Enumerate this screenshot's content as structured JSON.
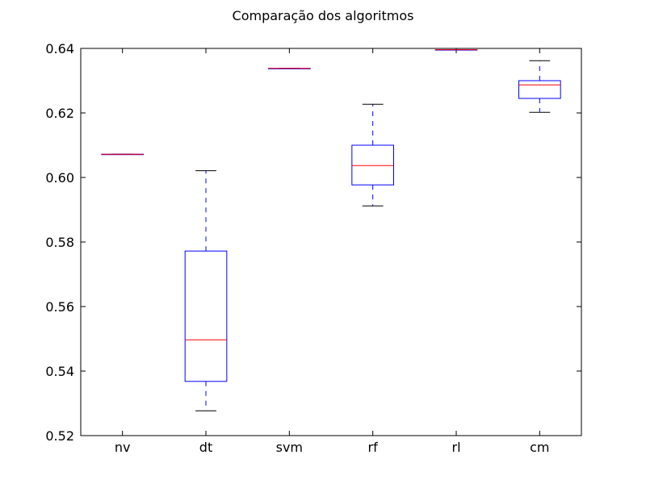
{
  "chart_data": {
    "type": "box",
    "title": "Comparação dos algoritmos",
    "xlabel": "",
    "ylabel": "",
    "ylim": [
      0.52,
      0.64
    ],
    "yticks": [
      "0.52",
      "0.54",
      "0.56",
      "0.58",
      "0.60",
      "0.62",
      "0.64"
    ],
    "ytick_values": [
      0.52,
      0.54,
      0.56,
      0.58,
      0.6,
      0.62,
      0.64
    ],
    "grid": false,
    "categories": [
      "nv",
      "dt",
      "svm",
      "rf",
      "rl",
      "cm"
    ],
    "boxes": [
      {
        "name": "nv",
        "whisker_low": 0.6072,
        "q1": 0.6072,
        "median": 0.6072,
        "q3": 0.6072,
        "whisker_high": 0.6072
      },
      {
        "name": "dt",
        "whisker_low": 0.5277,
        "q1": 0.5368,
        "median": 0.5497,
        "q3": 0.5772,
        "whisker_high": 0.6021
      },
      {
        "name": "svm",
        "whisker_low": 0.6338,
        "q1": 0.6338,
        "median": 0.6338,
        "q3": 0.6338,
        "whisker_high": 0.6338
      },
      {
        "name": "rf",
        "whisker_low": 0.5912,
        "q1": 0.5977,
        "median": 0.6037,
        "q3": 0.61,
        "whisker_high": 0.6227
      },
      {
        "name": "rl",
        "whisker_low": 0.6396,
        "q1": 0.6396,
        "median": 0.6396,
        "q3": 0.6396,
        "whisker_high": 0.6396
      },
      {
        "name": "cm",
        "whisker_low": 0.6202,
        "q1": 0.6245,
        "median": 0.6287,
        "q3": 0.63,
        "whisker_high": 0.6362
      }
    ],
    "colors": {
      "box": "#0000ff",
      "whisker": "#0000ff",
      "cap": "#000000",
      "median": "#ff0000",
      "axes": "#000000"
    }
  }
}
